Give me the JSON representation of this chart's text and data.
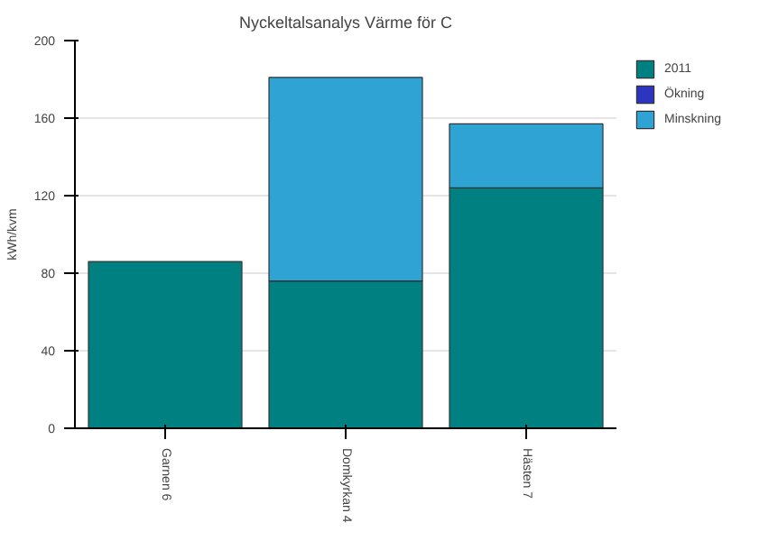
{
  "chart_data": {
    "type": "bar",
    "title": "Nyckeltalsanalys Värme för C",
    "ylabel": "kWh/kvm",
    "stacked": true,
    "categories": [
      "Garnen 6",
      "Domkyrkan 4",
      "Hästen 7"
    ],
    "series": [
      {
        "name": "2011",
        "color": "#008080",
        "values": [
          86,
          76,
          124
        ]
      },
      {
        "name": "Ökning",
        "color": "#2b35c0",
        "values": [
          null,
          null,
          null
        ]
      },
      {
        "name": "Minskning",
        "color": "#2fa3d4",
        "values": [
          null,
          105,
          33
        ]
      }
    ],
    "ylim": [
      0,
      200
    ],
    "yticks": [
      0,
      40,
      80,
      120,
      160,
      200
    ],
    "grid": "y",
    "legend": "right"
  }
}
